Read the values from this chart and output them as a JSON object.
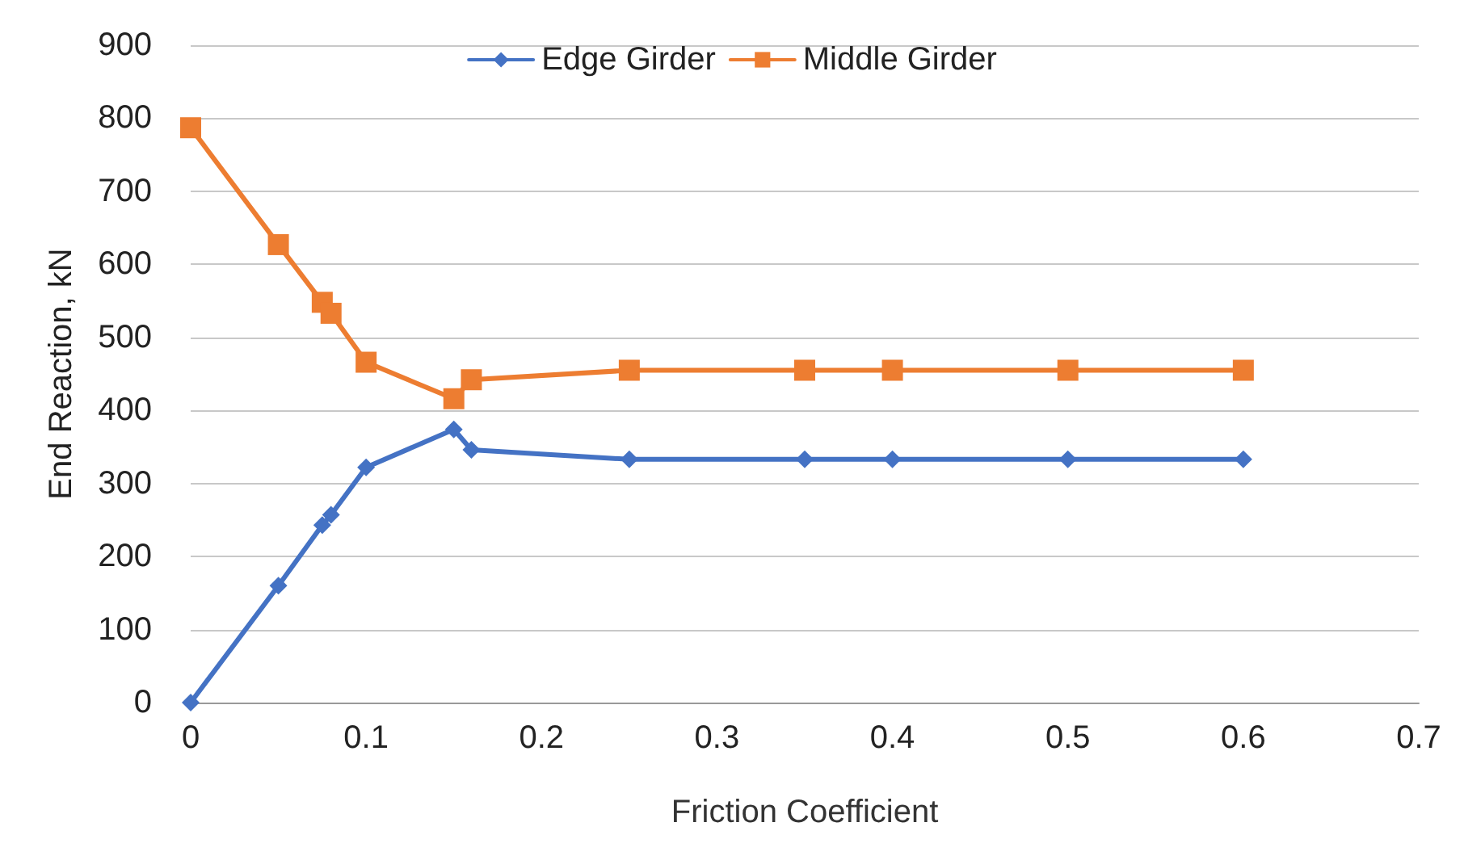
{
  "chart_data": {
    "type": "line",
    "xlabel": "Friction Coefficient",
    "ylabel": "End Reaction, kN",
    "xlim": [
      0,
      0.7
    ],
    "xticks": [
      0,
      0.1,
      0.2,
      0.3,
      0.4,
      0.5,
      0.6,
      0.7
    ],
    "ylim": [
      0,
      900
    ],
    "yticks": [
      0,
      100,
      200,
      300,
      400,
      500,
      600,
      700,
      800,
      900
    ],
    "grid": "y",
    "legend": "top",
    "line_style": "solid",
    "x": [
      0,
      0.05,
      0.075,
      0.08,
      0.1,
      0.15,
      0.16,
      0.25,
      0.35,
      0.4,
      0.5,
      0.6
    ],
    "series": [
      {
        "name": "Edge Girder",
        "color": "#4472c4",
        "marker": "diamond",
        "values": [
          0,
          160,
          243,
          257,
          322,
          374,
          346,
          333,
          333,
          333,
          333,
          333
        ]
      },
      {
        "name": "Middle Girder",
        "color": "#ed7d31",
        "marker": "square",
        "values": [
          787,
          627,
          548,
          533,
          466,
          416,
          442,
          455,
          455,
          455,
          455,
          455
        ]
      }
    ]
  }
}
